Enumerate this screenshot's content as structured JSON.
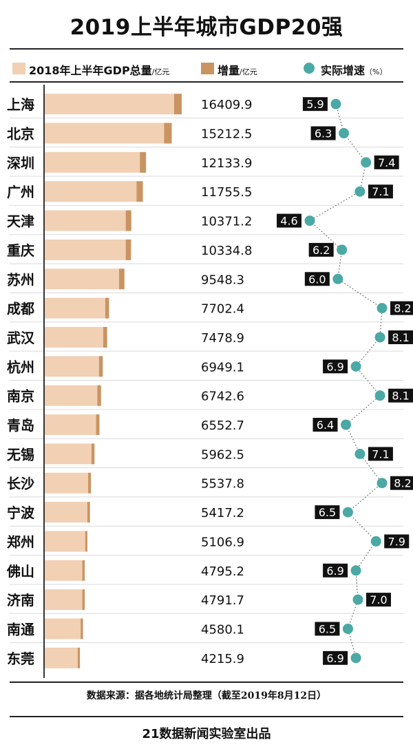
{
  "page": {
    "title": "2019上半年城市GDP20强",
    "source": "数据来源：据各地统计局整理（截至2019年8月12日）",
    "footer": "21数据新闻实验室出品"
  },
  "legend": {
    "base_label": "2018年上半年GDP总量",
    "base_unit": "/亿元",
    "increment_label": "增量",
    "increment_unit": "/亿元",
    "growth_label": "实际增速",
    "growth_unit": "（%）"
  },
  "colors": {
    "base": "#f1d0b4",
    "increment": "#c99462",
    "dot": "#4aa9a5",
    "label_bg": "#111111",
    "label_text": "#ffffff"
  },
  "chart_data": {
    "type": "bar",
    "categories": [
      "上海",
      "北京",
      "深圳",
      "广州",
      "天津",
      "重庆",
      "苏州",
      "成都",
      "武汉",
      "杭州",
      "南京",
      "青岛",
      "无锡",
      "长沙",
      "宁波",
      "郑州",
      "佛山",
      "济南",
      "南通",
      "东莞"
    ],
    "value_labels": [
      "16409.9",
      "15212.5",
      "12133.9",
      "11755.5",
      "10371.2",
      "10334.8",
      "9548.3",
      "7702.4",
      "7478.9",
      "6949.1",
      "6742.6",
      "6552.7",
      "5962.5",
      "5537.8",
      "5417.2",
      "5106.9",
      "4795.2",
      "4791.7",
      "4580.1",
      "4215.9"
    ],
    "series": [
      {
        "name": "2018年上半年GDP总量",
        "values": [
          15500,
          14300,
          11400,
          11000,
          9700,
          9700,
          8900,
          7250,
          7000,
          6500,
          6300,
          6150,
          5600,
          5200,
          5100,
          4850,
          4500,
          4500,
          4300,
          3950
        ]
      },
      {
        "name": "增量",
        "values": [
          909.9,
          912.5,
          733.9,
          755.5,
          671.2,
          634.8,
          648.3,
          452.4,
          478.9,
          449.1,
          442.6,
          402.7,
          362.5,
          337.8,
          317.2,
          256.9,
          295.2,
          291.7,
          280.1,
          265.9
        ]
      },
      {
        "name": "实际增速",
        "values": [
          5.9,
          6.3,
          7.4,
          7.1,
          4.6,
          6.2,
          6.0,
          8.2,
          8.1,
          6.9,
          8.1,
          6.4,
          7.1,
          8.2,
          6.5,
          7.9,
          6.9,
          7.0,
          6.5,
          6.9
        ]
      }
    ],
    "growth_labels": [
      "5.9",
      "6.3",
      "7.4",
      "7.1",
      "4.6",
      "6.2",
      "6.0",
      "8.2",
      "8.1",
      "6.9",
      "8.1",
      "6.4",
      "7.1",
      "8.2",
      "6.5",
      "7.9",
      "6.9",
      "7.0",
      "6.5",
      "6.9"
    ],
    "growth_label_side": [
      "left",
      "left",
      "right",
      "right",
      "left",
      "left",
      "left",
      "right",
      "right",
      "left",
      "right",
      "left",
      "right",
      "right",
      "left",
      "right",
      "left",
      "right",
      "left",
      "left"
    ],
    "bar_xlim": [
      0,
      16409.9
    ],
    "growth_xlim": [
      4.6,
      8.2
    ],
    "grid": false
  }
}
